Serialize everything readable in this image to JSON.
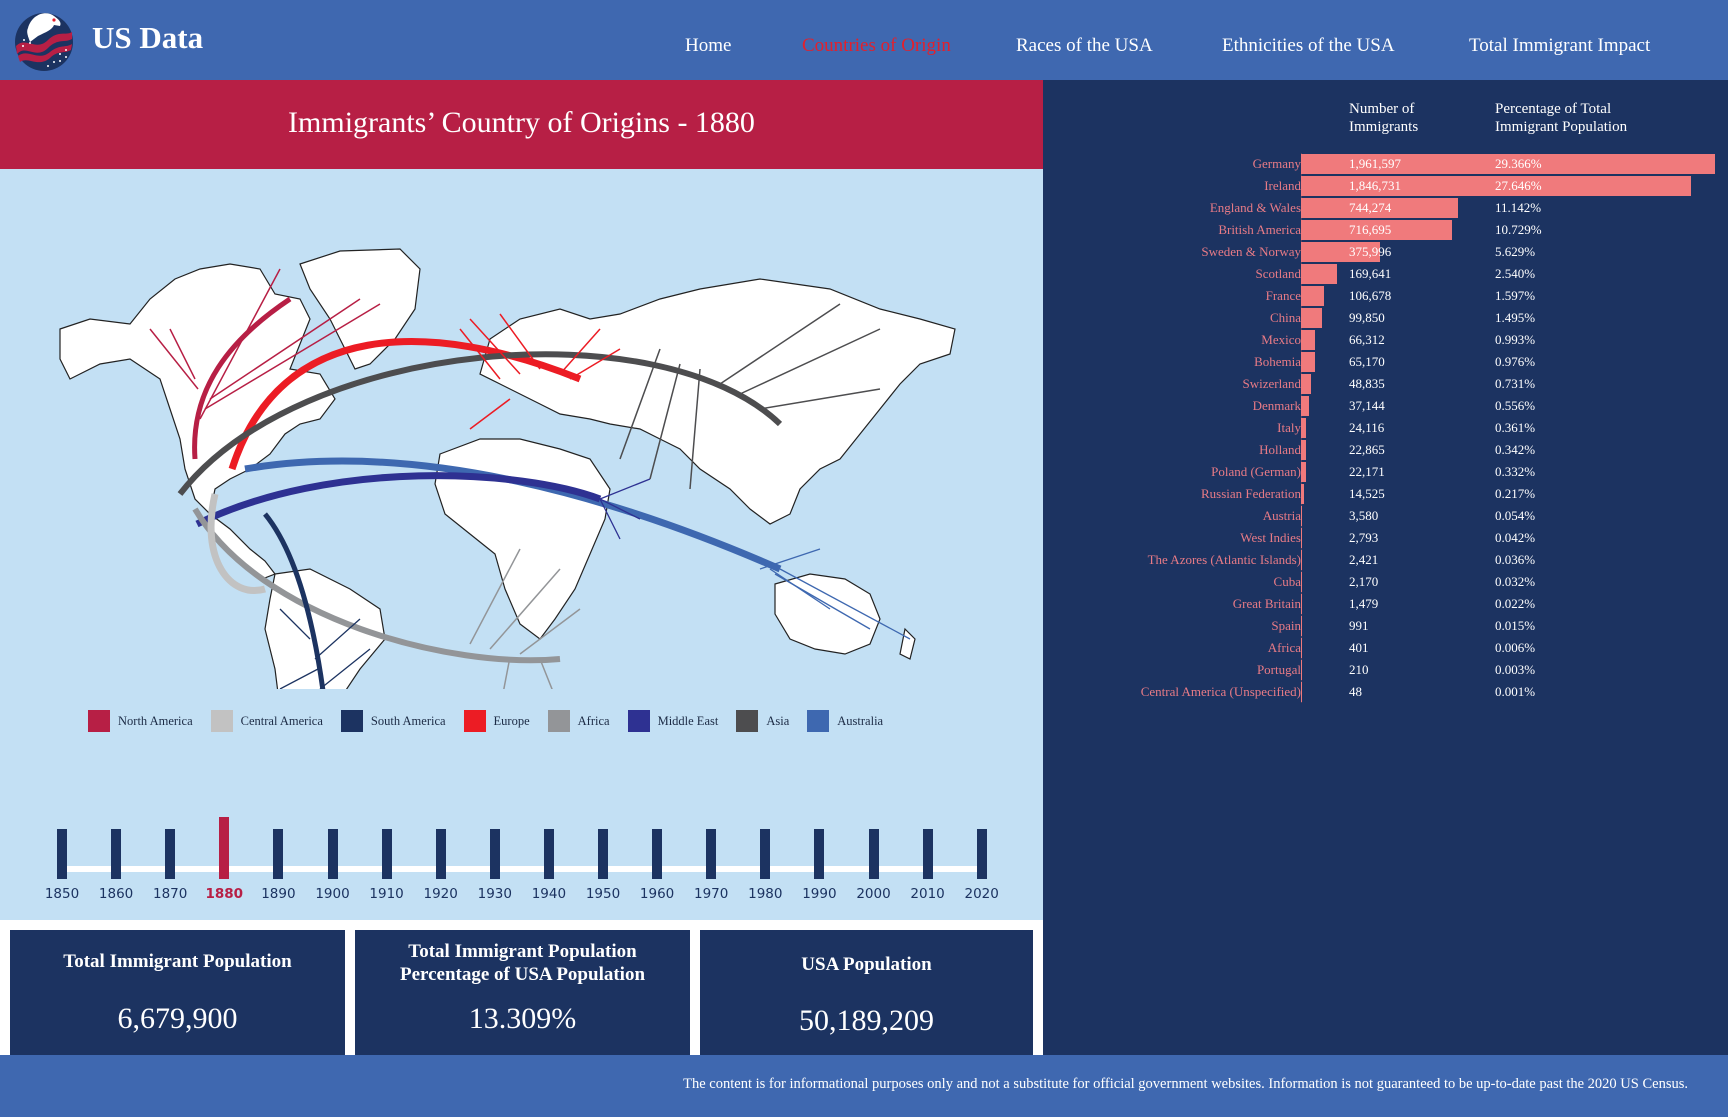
{
  "header": {
    "brand": "US Data",
    "logo_icon": "eagle-flag-logo",
    "nav": [
      {
        "label": "Home",
        "active": false
      },
      {
        "label": "Countries of Origin",
        "active": true
      },
      {
        "label": "Races of the USA",
        "active": false
      },
      {
        "label": "Ethnicities of the USA",
        "active": false
      },
      {
        "label": "Total Immigrant Impact",
        "active": false
      }
    ]
  },
  "page": {
    "title": "Immigrants’ Country of Origins - 1880"
  },
  "map": {
    "description": "World map with migration flow lines to the USA, colored by region",
    "legend": [
      {
        "label": "North America",
        "color": "#b71f45"
      },
      {
        "label": "Central America",
        "color": "#c2c2c2"
      },
      {
        "label": "South America",
        "color": "#1c3361"
      },
      {
        "label": "Europe",
        "color": "#ec1c24"
      },
      {
        "label": "Africa",
        "color": "#939598"
      },
      {
        "label": "Middle East",
        "color": "#2e3192"
      },
      {
        "label": "Asia",
        "color": "#4d4d4f"
      },
      {
        "label": "Australia",
        "color": "#3e68b0"
      }
    ]
  },
  "timeline": {
    "years": [
      "1850",
      "1860",
      "1870",
      "1880",
      "1890",
      "1900",
      "1910",
      "1920",
      "1930",
      "1940",
      "1950",
      "1960",
      "1970",
      "1980",
      "1990",
      "2000",
      "2010",
      "2020"
    ],
    "selected": "1880"
  },
  "stats": [
    {
      "label": "Total Immigrant Population",
      "value": "6,679,900"
    },
    {
      "label": "Total Immigrant Population Percentage of USA Population",
      "label_line1": "Total Immigrant Population",
      "label_line2": "Percentage of USA Population",
      "value": "13.309%"
    },
    {
      "label": "USA Population",
      "value": "50,189,209"
    }
  ],
  "table": {
    "headers": {
      "count_line1": "Number of",
      "count_line2": "Immigrants",
      "pct_line1": "Percentage of Total",
      "pct_line2": "Immigrant Population"
    },
    "rows": [
      {
        "country": "Germany",
        "count": "1,961,597",
        "value": 1961597,
        "pct": "29.366%"
      },
      {
        "country": "Ireland",
        "count": "1,846,731",
        "value": 1846731,
        "pct": "27.646%"
      },
      {
        "country": "England & Wales",
        "count": "744,274",
        "value": 744274,
        "pct": "11.142%"
      },
      {
        "country": "British America",
        "count": "716,695",
        "value": 716695,
        "pct": "10.729%"
      },
      {
        "country": "Sweden & Norway",
        "count": "375,996",
        "value": 375996,
        "pct": "5.629%"
      },
      {
        "country": "Scotland",
        "count": "169,641",
        "value": 169641,
        "pct": "2.540%"
      },
      {
        "country": "France",
        "count": "106,678",
        "value": 106678,
        "pct": "1.597%"
      },
      {
        "country": "China",
        "count": "99,850",
        "value": 99850,
        "pct": "1.495%"
      },
      {
        "country": "Mexico",
        "count": "66,312",
        "value": 66312,
        "pct": "0.993%"
      },
      {
        "country": "Bohemia",
        "count": "65,170",
        "value": 65170,
        "pct": "0.976%"
      },
      {
        "country": "Swizerland",
        "count": "48,835",
        "value": 48835,
        "pct": "0.731%"
      },
      {
        "country": "Denmark",
        "count": "37,144",
        "value": 37144,
        "pct": "0.556%"
      },
      {
        "country": "Italy",
        "count": "24,116",
        "value": 24116,
        "pct": "0.361%"
      },
      {
        "country": "Holland",
        "count": "22,865",
        "value": 22865,
        "pct": "0.342%"
      },
      {
        "country": "Poland (German)",
        "count": "22,171",
        "value": 22171,
        "pct": "0.332%"
      },
      {
        "country": "Russian Federation",
        "count": "14,525",
        "value": 14525,
        "pct": "0.217%"
      },
      {
        "country": "Austria",
        "count": "3,580",
        "value": 3580,
        "pct": "0.054%"
      },
      {
        "country": "West Indies",
        "count": "2,793",
        "value": 2793,
        "pct": "0.042%"
      },
      {
        "country": "The Azores (Atlantic Islands)",
        "count": "2,421",
        "value": 2421,
        "pct": "0.036%"
      },
      {
        "country": "Cuba",
        "count": "2,170",
        "value": 2170,
        "pct": "0.032%"
      },
      {
        "country": "Great Britain",
        "count": "1,479",
        "value": 1479,
        "pct": "0.022%"
      },
      {
        "country": "Spain",
        "count": "991",
        "value": 991,
        "pct": "0.015%"
      },
      {
        "country": "Africa",
        "count": "401",
        "value": 401,
        "pct": "0.006%"
      },
      {
        "country": "Portugal",
        "count": "210",
        "value": 210,
        "pct": "0.003%"
      },
      {
        "country": "Central America (Unspecified)",
        "count": "48",
        "value": 48,
        "pct": "0.001%"
      }
    ],
    "bar_color": "#f07a7c"
  },
  "footer": {
    "text": "The content is for informational purposes only and not a substitute for official government websites. Information is not guaranteed to be up-to-date past the 2020 US Census."
  },
  "colors": {
    "header_bg": "#3f68b0",
    "title_band": "#b71f45",
    "map_bg": "#c3e0f4",
    "panel_dark": "#1c3361",
    "active_nav": "#e3202c"
  }
}
